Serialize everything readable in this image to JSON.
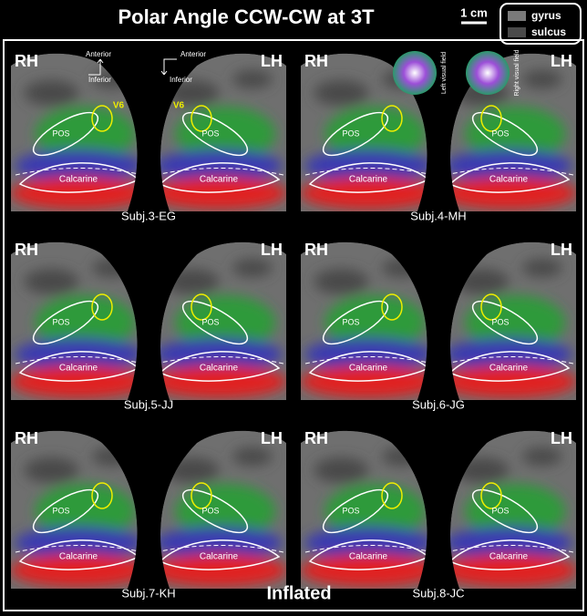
{
  "title": "Polar Angle CCW-CW at 3T",
  "scale_bar": "1 cm",
  "legend": {
    "gyrus": "gyrus",
    "sulcus": "sulcus"
  },
  "orientation": {
    "rh": {
      "up": "Anterior",
      "down": "Inferior"
    },
    "lh": {
      "up": "Anterior",
      "down": "Inferior"
    }
  },
  "color_wheels": {
    "left": "Left visual field",
    "right": "Right visual field"
  },
  "footer": "Inflated",
  "panels": [
    {
      "subject": "Subj.3-EG",
      "rh": {
        "hemi": "RH",
        "pos": "POS",
        "calcarine": "Calcarine",
        "roi": "V6"
      },
      "lh": {
        "hemi": "LH",
        "pos": "POS",
        "calcarine": "Calcarine",
        "roi": "V6"
      }
    },
    {
      "subject": "Subj.4-MH",
      "rh": {
        "hemi": "RH",
        "pos": "POS",
        "calcarine": "Calcarine"
      },
      "lh": {
        "hemi": "LH",
        "pos": "POS",
        "calcarine": "Calcarine"
      }
    },
    {
      "subject": "Subj.5-JJ",
      "rh": {
        "hemi": "RH",
        "pos": "POS",
        "calcarine": "Calcarine"
      },
      "lh": {
        "hemi": "LH",
        "pos": "POS",
        "calcarine": "Calcarine"
      }
    },
    {
      "subject": "Subj.6-JG",
      "rh": {
        "hemi": "RH",
        "pos": "POS",
        "calcarine": "Calcarine"
      },
      "lh": {
        "hemi": "LH",
        "pos": "POS",
        "calcarine": "Calcarine"
      }
    },
    {
      "subject": "Subj.7-KH",
      "rh": {
        "hemi": "RH",
        "pos": "POS",
        "calcarine": "Calcarine"
      },
      "lh": {
        "hemi": "LH",
        "pos": "POS",
        "calcarine": "Calcarine"
      }
    },
    {
      "subject": "Subj.8-JC",
      "rh": {
        "hemi": "RH",
        "pos": "POS",
        "calcarine": "Calcarine"
      },
      "lh": {
        "hemi": "LH",
        "pos": "POS",
        "calcarine": "Calcarine"
      }
    }
  ]
}
